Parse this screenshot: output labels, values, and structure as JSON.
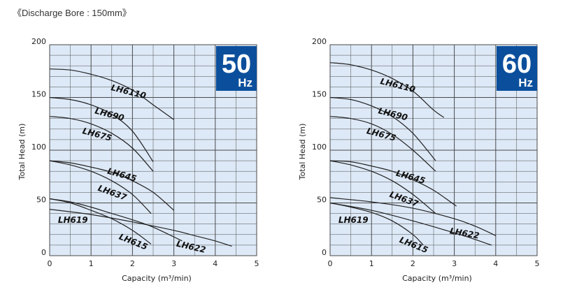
{
  "header": {
    "title": "《Discharge Bore : 150mm》"
  },
  "colors": {
    "plot_bg": "#dde9f7",
    "grid": "#4a4a4a",
    "badge": "#0b4f9c",
    "curve": "#222222"
  },
  "chart_data": [
    {
      "type": "line",
      "badge": {
        "value": "50",
        "unit": "Hz"
      },
      "xlabel": "Capacity (m³/min)",
      "ylabel": "Total Head (m)",
      "xlim": [
        0,
        5
      ],
      "ylim": [
        0,
        200
      ],
      "xticks": [
        "0",
        "1",
        "2",
        "3",
        "4",
        "5"
      ],
      "yticks": [
        "0",
        "50",
        "100",
        "150",
        "200"
      ],
      "grid": true,
      "series": [
        {
          "name": "LH6110",
          "x": [
            0,
            0.5,
            1.0,
            1.5,
            2.0,
            2.5,
            3.0
          ],
          "y": [
            177,
            176,
            172,
            166,
            157,
            143,
            129
          ]
        },
        {
          "name": "LH690",
          "x": [
            0,
            0.5,
            1.0,
            1.5,
            2.0,
            2.5
          ],
          "y": [
            150,
            148,
            143,
            134,
            118,
            89
          ]
        },
        {
          "name": "LH675",
          "x": [
            0,
            0.5,
            1.0,
            1.5,
            2.0,
            2.5
          ],
          "y": [
            132,
            130,
            125,
            116,
            102,
            80
          ]
        },
        {
          "name": "LH645",
          "x": [
            0,
            0.5,
            1.0,
            1.5,
            2.0,
            2.5,
            3.0
          ],
          "y": [
            90,
            88,
            84,
            79,
            71,
            60,
            43
          ]
        },
        {
          "name": "LH637",
          "x": [
            0,
            0.5,
            1.0,
            1.5,
            2.0,
            2.45
          ],
          "y": [
            90,
            86,
            80,
            71,
            58,
            40
          ]
        },
        {
          "name": "LH622",
          "x": [
            0,
            1.0,
            2.0,
            3.0,
            3.5,
            4.0,
            4.4
          ],
          "y": [
            44,
            39,
            32,
            24,
            19,
            14,
            9
          ]
        },
        {
          "name": "LH619",
          "x": [
            0,
            0.5,
            1.0,
            1.5,
            2.0,
            2.5,
            3.2
          ],
          "y": [
            54,
            51,
            46,
            40,
            34,
            27,
            14
          ]
        },
        {
          "name": "LH615",
          "x": [
            0,
            0.5,
            1.0,
            1.5,
            2.0,
            2.45
          ],
          "y": [
            54,
            50,
            43,
            35,
            24,
            11
          ]
        }
      ],
      "labels": [
        {
          "text": "LH6110",
          "x": 1.47,
          "y": 157,
          "rot": 14
        },
        {
          "text": "LH690",
          "x": 1.08,
          "y": 135,
          "rot": 15
        },
        {
          "text": "LH675",
          "x": 0.78,
          "y": 116,
          "rot": 15
        },
        {
          "text": "LH645",
          "x": 1.38,
          "y": 78,
          "rot": 16
        },
        {
          "text": "LH637",
          "x": 1.15,
          "y": 62,
          "rot": 20
        },
        {
          "text": "LH619",
          "x": 0.2,
          "y": 31,
          "rot": 0
        },
        {
          "text": "LH615",
          "x": 1.66,
          "y": 16,
          "rot": 22
        },
        {
          "text": "LH622",
          "x": 3.05,
          "y": 9,
          "rot": 13
        }
      ]
    },
    {
      "type": "line",
      "badge": {
        "value": "60",
        "unit": "Hz"
      },
      "xlabel": "Capacity (m³/min)",
      "ylabel": "Total Head (m)",
      "xlim": [
        0,
        5
      ],
      "ylim": [
        0,
        200
      ],
      "xticks": [
        "0",
        "1",
        "2",
        "3",
        "4",
        "5"
      ],
      "yticks": [
        "0",
        "50",
        "100",
        "150",
        "200"
      ],
      "grid": true,
      "series": [
        {
          "name": "LH6110",
          "x": [
            0,
            0.5,
            1.0,
            1.5,
            2.0,
            2.5,
            2.75
          ],
          "y": [
            183,
            181,
            176,
            168,
            156,
            138,
            131
          ]
        },
        {
          "name": "LH690",
          "x": [
            0,
            0.5,
            1.0,
            1.5,
            2.0,
            2.55
          ],
          "y": [
            150,
            148,
            142,
            132,
            116,
            90
          ]
        },
        {
          "name": "LH675",
          "x": [
            0,
            0.5,
            1.0,
            1.5,
            2.0,
            2.55
          ],
          "y": [
            132,
            130,
            125,
            115,
            100,
            80
          ]
        },
        {
          "name": "LH645",
          "x": [
            0,
            0.5,
            1.0,
            1.5,
            2.0,
            2.5,
            3.05
          ],
          "y": [
            90,
            89,
            85,
            80,
            72,
            62,
            47
          ]
        },
        {
          "name": "LH637",
          "x": [
            0,
            0.5,
            1.0,
            1.5,
            2.0,
            2.55
          ],
          "y": [
            90,
            86,
            80,
            71,
            58,
            40
          ]
        },
        {
          "name": "LH622",
          "x": [
            0,
            1.0,
            2.0,
            3.0,
            3.5,
            4.0
          ],
          "y": [
            55,
            51,
            45,
            35,
            28,
            19
          ]
        },
        {
          "name": "LH619",
          "x": [
            0,
            1.0,
            2.0,
            2.8,
            3.3,
            3.9
          ],
          "y": [
            50,
            43,
            33,
            24,
            18,
            10
          ]
        },
        {
          "name": "LH615",
          "x": [
            0,
            0.5,
            1.0,
            1.5,
            2.0,
            2.25
          ],
          "y": [
            50,
            46,
            41,
            33,
            20,
            10
          ]
        }
      ],
      "labels": [
        {
          "text": "LH6110",
          "x": 1.2,
          "y": 163,
          "rot": 14
        },
        {
          "text": "LH690",
          "x": 1.15,
          "y": 135,
          "rot": 14
        },
        {
          "text": "LH675",
          "x": 0.87,
          "y": 116,
          "rot": 15
        },
        {
          "text": "LH645",
          "x": 1.58,
          "y": 76,
          "rot": 16
        },
        {
          "text": "LH637",
          "x": 1.42,
          "y": 56,
          "rot": 20
        },
        {
          "text": "LH619",
          "x": 0.2,
          "y": 31,
          "rot": 0
        },
        {
          "text": "LH615",
          "x": 1.66,
          "y": 13,
          "rot": 22
        },
        {
          "text": "LH622",
          "x": 2.88,
          "y": 21,
          "rot": 10
        }
      ]
    }
  ]
}
